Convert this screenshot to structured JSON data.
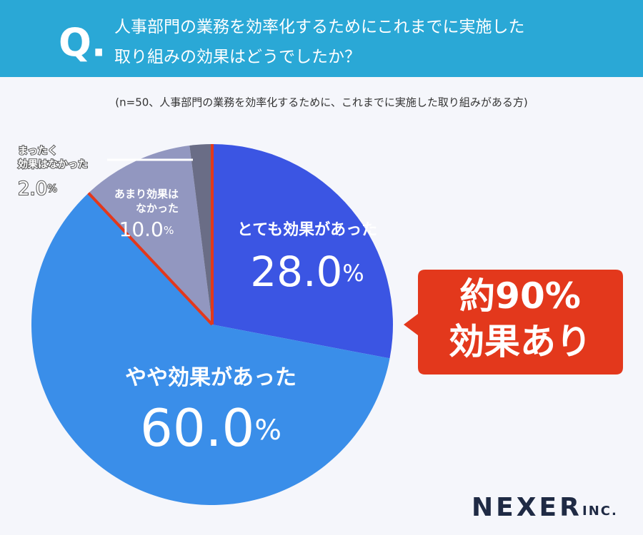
{
  "header": {
    "mark": "Q.",
    "question": "人事部門の業務を効率化するためにこれまでに実施した\n取り組みの効果はどうでしたか？"
  },
  "chart_data": {
    "type": "pie",
    "subtitle": "(n=50、人事部門の業務を効率化するために、これまでに実施した取り組みがある方)",
    "categories": [
      "とても効果があった",
      "やや効果があった",
      "あまり効果は\nなかった",
      "まったく\n効果はなかった"
    ],
    "values": [
      28.0,
      60.0,
      10.0,
      2.0
    ],
    "value_labels": [
      "28.0%",
      "60.0%",
      "10.0%",
      "2.0%"
    ],
    "colors": [
      "#3b55e3",
      "#3a8ee9",
      "#9297c0",
      "#6a6d86"
    ]
  },
  "callout": "約90%\n効果あり",
  "logo": {
    "name": "NEXER",
    "suffix": "INC."
  }
}
